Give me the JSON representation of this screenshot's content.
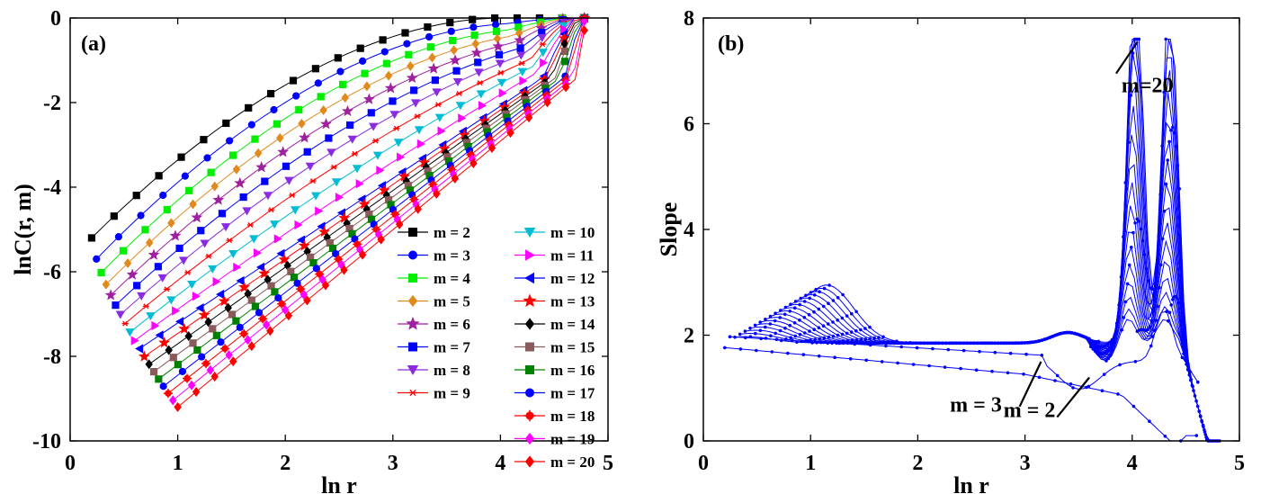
{
  "panels": [
    {
      "id": "a",
      "label": "(a)",
      "type": "line",
      "xlabel": "ln r",
      "ylabel": "lnC(r, m)",
      "xlim": [
        0,
        5
      ],
      "ylim": [
        -10,
        0
      ],
      "xticks": [
        "0",
        "1",
        "2",
        "3",
        "4",
        "5"
      ],
      "yticks": [
        "0",
        "-2",
        "-4",
        "-6",
        "-8",
        "-10"
      ],
      "legend_placement": "lower-right",
      "legend": [
        "m = 2",
        "m = 3",
        "m = 4",
        "m = 5",
        "m = 6",
        "m = 7",
        "m = 8",
        "m = 9",
        "m = 10",
        "m = 11",
        "m = 12",
        "m = 13",
        "m = 14",
        "m = 15",
        "m = 16",
        "m = 17",
        "m = 18",
        "m = 19",
        "m = 20"
      ]
    },
    {
      "id": "b",
      "label": "(b)",
      "type": "line",
      "xlabel": "ln r",
      "ylabel": "Slope",
      "xlim": [
        0,
        5
      ],
      "ylim": [
        0,
        8
      ],
      "xticks": [
        "0",
        "1",
        "2",
        "3",
        "4",
        "5"
      ],
      "yticks": [
        "0",
        "2",
        "4",
        "6",
        "8"
      ],
      "annotations": [
        {
          "text": "m=20",
          "x": 3.9,
          "y": 6.6
        },
        {
          "text": "m = 3",
          "x": 2.3,
          "y": 0.55
        },
        {
          "text": "m = 2",
          "x": 2.8,
          "y": 0.45
        }
      ]
    }
  ],
  "chart_data": [
    {
      "type": "line",
      "title": "",
      "label": "(a)",
      "xlabel": "ln r",
      "ylabel": "lnC(r, m)",
      "xlim": [
        0,
        5
      ],
      "ylim": [
        -10,
        0
      ],
      "grid": false,
      "legend": "lower-right",
      "series": [
        {
          "name": "m = 2",
          "color": "#000000",
          "marker": "square"
        },
        {
          "name": "m = 3",
          "color": "#0000ff",
          "marker": "circle"
        },
        {
          "name": "m = 4",
          "color": "#00ee00",
          "marker": "square"
        },
        {
          "name": "m = 5",
          "color": "#e08a1e",
          "marker": "diamond"
        },
        {
          "name": "m = 6",
          "color": "#a020a0",
          "marker": "star"
        },
        {
          "name": "m = 7",
          "color": "#0000ff",
          "marker": "square"
        },
        {
          "name": "m = 8",
          "color": "#8a2be2",
          "marker": "triangle-down"
        },
        {
          "name": "m = 9",
          "color": "#ff0000",
          "marker": "asterisk"
        },
        {
          "name": "m = 10",
          "color": "#00bcd4",
          "marker": "triangle-down"
        },
        {
          "name": "m = 11",
          "color": "#ff00ff",
          "marker": "triangle-right"
        },
        {
          "name": "m = 12",
          "color": "#0000ff",
          "marker": "triangle-left"
        },
        {
          "name": "m = 13",
          "color": "#ff0000",
          "marker": "star"
        },
        {
          "name": "m = 14",
          "color": "#000000",
          "marker": "diamond"
        },
        {
          "name": "m = 15",
          "color": "#8b5a5a",
          "marker": "square"
        },
        {
          "name": "m = 16",
          "color": "#008000",
          "marker": "square"
        },
        {
          "name": "m = 17",
          "color": "#0000ff",
          "marker": "circle"
        },
        {
          "name": "m = 18",
          "color": "#ff0000",
          "marker": "cross"
        },
        {
          "name": "m = 19",
          "color": "#ff00ff",
          "marker": "diamond"
        },
        {
          "name": "m = 20",
          "color": "#ff0000",
          "marker": "diamond"
        }
      ]
    },
    {
      "type": "line",
      "title": "",
      "label": "(b)",
      "xlabel": "ln r",
      "ylabel": "Slope",
      "xlim": [
        0,
        5
      ],
      "ylim": [
        0,
        8
      ],
      "grid": false,
      "color": "#0000ff",
      "annotations": [
        "m=20",
        "m = 3",
        "m = 2"
      ]
    }
  ]
}
